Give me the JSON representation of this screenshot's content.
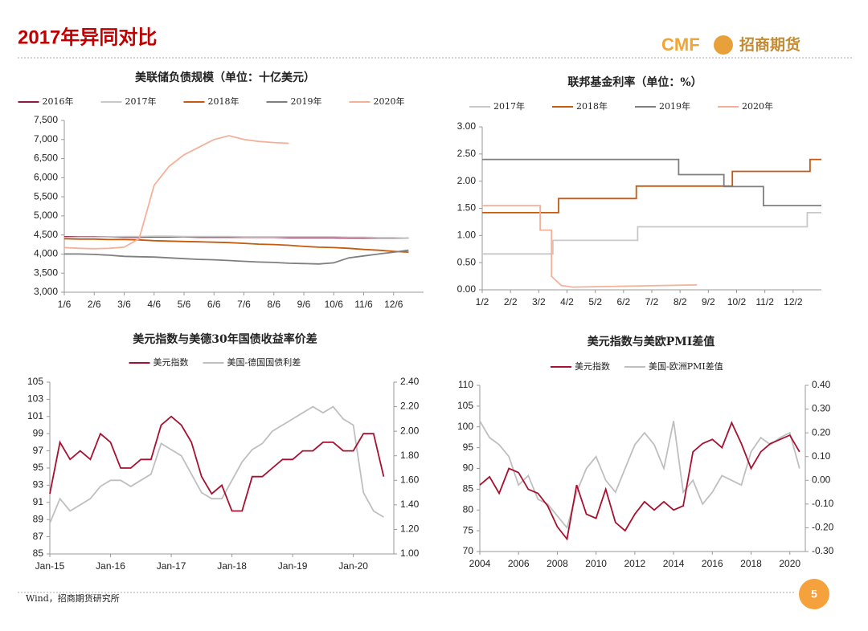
{
  "header": {
    "title": "2017年异同对比",
    "logo_en": "CMF",
    "logo_cn": "招商期货"
  },
  "footer": {
    "source": "Wind，招商期货研究所",
    "page": 5
  },
  "chart_data": [
    {
      "type": "line",
      "title": "美联储负债规模（单位：十亿美元）",
      "x": [
        1,
        1.5,
        2,
        2.5,
        3,
        3.5,
        4,
        4.5,
        5,
        5.5,
        6,
        6.5,
        7,
        7.5,
        8,
        8.5,
        9,
        9.5,
        10,
        10.5,
        11,
        11.5,
        12,
        12.5
      ],
      "xlim": [
        1,
        13
      ],
      "xticks": [
        {
          "value": 1,
          "label": "1/6"
        },
        {
          "value": 2,
          "label": "2/6"
        },
        {
          "value": 3,
          "label": "3/6"
        },
        {
          "value": 4,
          "label": "4/6"
        },
        {
          "value": 5,
          "label": "5/6"
        },
        {
          "value": 6,
          "label": "6/6"
        },
        {
          "value": 7,
          "label": "7/6"
        },
        {
          "value": 8,
          "label": "8/6"
        },
        {
          "value": 9,
          "label": "9/6"
        },
        {
          "value": 10,
          "label": "10/6"
        },
        {
          "value": 11,
          "label": "11/6"
        },
        {
          "value": 12,
          "label": "12/6"
        }
      ],
      "ylim": [
        3000,
        7500
      ],
      "yticks": [
        {
          "value": 3000,
          "label": "3,000"
        },
        {
          "value": 3500,
          "label": "3,500"
        },
        {
          "value": 4000,
          "label": "4,000"
        },
        {
          "value": 4500,
          "label": "4,500"
        },
        {
          "value": 5000,
          "label": "5,000"
        },
        {
          "value": 5500,
          "label": "5,500"
        },
        {
          "value": 6000,
          "label": "6,000"
        },
        {
          "value": 6500,
          "label": "6,500"
        },
        {
          "value": 7000,
          "label": "7,000"
        },
        {
          "value": 7500,
          "label": "7,500"
        }
      ],
      "series": [
        {
          "name": "2016年",
          "color": "#8b1c3f",
          "values": [
            4450,
            4450,
            4450,
            4450,
            4440,
            4440,
            4450,
            4450,
            4450,
            4440,
            4440,
            4440,
            4440,
            4440,
            4440,
            4430,
            4430,
            4430,
            4430,
            4420,
            4420,
            4420,
            4420,
            4420
          ]
        },
        {
          "name": "2017年",
          "color": "#c8c8c8",
          "values": [
            4430,
            4440,
            4440,
            4450,
            4460,
            4460,
            4470,
            4470,
            4460,
            4460,
            4460,
            4460,
            4450,
            4450,
            4450,
            4450,
            4450,
            4450,
            4450,
            4440,
            4440,
            4430,
            4430,
            4420
          ]
        },
        {
          "name": "2018年",
          "color": "#c55a11",
          "values": [
            4400,
            4390,
            4390,
            4380,
            4380,
            4370,
            4350,
            4340,
            4330,
            4320,
            4310,
            4300,
            4280,
            4260,
            4250,
            4230,
            4200,
            4180,
            4170,
            4150,
            4120,
            4100,
            4070,
            4050
          ]
        },
        {
          "name": "2019年",
          "color": "#7f7f7f",
          "values": [
            4000,
            4000,
            3990,
            3970,
            3940,
            3930,
            3920,
            3900,
            3880,
            3860,
            3850,
            3830,
            3810,
            3790,
            3780,
            3760,
            3750,
            3740,
            3770,
            3900,
            3950,
            4000,
            4050,
            4100
          ]
        },
        {
          "name": "2020年",
          "color": "#f4b19a",
          "values": [
            4170,
            4150,
            4140,
            4150,
            4180,
            4400,
            5800,
            6300,
            6600,
            6800,
            7000,
            7100,
            7000,
            6950,
            6920,
            6900,
            null,
            null,
            null,
            null,
            null,
            null,
            null,
            null
          ]
        }
      ]
    },
    {
      "type": "line",
      "title": "联邦基金利率（单位：%）",
      "xlim": [
        1,
        13
      ],
      "xticks": [
        {
          "value": 1,
          "label": "1/2"
        },
        {
          "value": 2,
          "label": "2/2"
        },
        {
          "value": 3,
          "label": "3/2"
        },
        {
          "value": 4,
          "label": "4/2"
        },
        {
          "value": 5,
          "label": "5/2"
        },
        {
          "value": 6,
          "label": "6/2"
        },
        {
          "value": 7,
          "label": "7/2"
        },
        {
          "value": 8,
          "label": "8/2"
        },
        {
          "value": 9,
          "label": "9/2"
        },
        {
          "value": 10,
          "label": "10/2"
        },
        {
          "value": 11,
          "label": "11/2"
        },
        {
          "value": 12,
          "label": "12/2"
        }
      ],
      "ylim": [
        0,
        3
      ],
      "yticks": [
        {
          "value": 0,
          "label": "0.00"
        },
        {
          "value": 0.5,
          "label": "0.50"
        },
        {
          "value": 1,
          "label": "1.00"
        },
        {
          "value": 1.5,
          "label": "1.50"
        },
        {
          "value": 2,
          "label": "2.00"
        },
        {
          "value": 2.5,
          "label": "2.50"
        },
        {
          "value": 3,
          "label": "3.00"
        }
      ],
      "series": [
        {
          "name": "2017年",
          "color": "#c8c8c8",
          "x": [
            1,
            3.5,
            3.5,
            6.5,
            6.5,
            12.5,
            12.5,
            13
          ],
          "values": [
            0.66,
            0.66,
            0.91,
            0.91,
            1.16,
            1.16,
            1.42,
            1.42
          ]
        },
        {
          "name": "2018年",
          "color": "#c55a11",
          "x": [
            1,
            3.7,
            3.7,
            6.45,
            6.45,
            9.85,
            9.85,
            12.6,
            12.6,
            13
          ],
          "values": [
            1.42,
            1.42,
            1.68,
            1.68,
            1.91,
            1.91,
            2.18,
            2.18,
            2.4,
            2.4
          ]
        },
        {
          "name": "2019年",
          "color": "#7f7f7f",
          "x": [
            1,
            7.95,
            7.95,
            9.55,
            9.55,
            10.95,
            10.95,
            13
          ],
          "values": [
            2.4,
            2.4,
            2.12,
            2.12,
            1.9,
            1.9,
            1.55,
            1.55
          ]
        },
        {
          "name": "2020年",
          "color": "#f4b19a",
          "x": [
            1,
            3.05,
            3.05,
            3.45,
            3.45,
            3.8,
            4.2,
            8.6
          ],
          "values": [
            1.55,
            1.55,
            1.1,
            1.1,
            0.25,
            0.08,
            0.05,
            0.09
          ]
        }
      ]
    },
    {
      "type": "line",
      "title": "美元指数与美德30年国债收益率价差",
      "x": [
        "2015-01",
        "2015-03",
        "2015-05",
        "2015-07",
        "2015-09",
        "2015-11",
        "2016-01",
        "2016-03",
        "2016-05",
        "2016-07",
        "2016-09",
        "2016-11",
        "2017-01",
        "2017-03",
        "2017-05",
        "2017-07",
        "2017-09",
        "2017-11",
        "2018-01",
        "2018-03",
        "2018-05",
        "2018-07",
        "2018-09",
        "2018-11",
        "2019-01",
        "2019-03",
        "2019-05",
        "2019-07",
        "2019-09",
        "2019-11",
        "2020-01",
        "2020-03",
        "2020-05",
        "2020-07"
      ],
      "xlim": [
        "2015-01",
        "2020-09"
      ],
      "xticks": [
        {
          "value": "2015-01",
          "label": "Jan-15"
        },
        {
          "value": "2016-01",
          "label": "Jan-16"
        },
        {
          "value": "2017-01",
          "label": "Jan-17"
        },
        {
          "value": "2018-01",
          "label": "Jan-18"
        },
        {
          "value": "2019-01",
          "label": "Jan-19"
        },
        {
          "value": "2020-01",
          "label": "Jan-20"
        }
      ],
      "ylim": [
        85,
        105
      ],
      "yticks": [
        85,
        87,
        89,
        91,
        93,
        95,
        97,
        99,
        101,
        103,
        105
      ],
      "y2lim": [
        1.0,
        2.4
      ],
      "y2ticks": [
        {
          "value": 1.0,
          "label": "1.00"
        },
        {
          "value": 1.2,
          "label": "1.20"
        },
        {
          "value": 1.4,
          "label": "1.40"
        },
        {
          "value": 1.6,
          "label": "1.60"
        },
        {
          "value": 1.8,
          "label": "1.80"
        },
        {
          "value": 2.0,
          "label": "2.00"
        },
        {
          "value": 2.2,
          "label": "2.20"
        },
        {
          "value": 2.4,
          "label": "2.40"
        }
      ],
      "series": [
        {
          "name": "美元指数",
          "color": "#a6112f",
          "values": [
            92,
            98,
            96,
            97,
            96,
            99,
            98,
            95,
            95,
            96,
            96,
            100,
            101,
            100,
            98,
            94,
            92,
            93,
            90,
            90,
            94,
            94,
            95,
            96,
            96,
            97,
            97,
            98,
            98,
            97,
            97,
            99,
            99,
            94
          ]
        },
        {
          "name": "美国-德国国债利差",
          "color": "#bfbfbf",
          "axis": "y2",
          "values": [
            1.25,
            1.45,
            1.35,
            1.4,
            1.45,
            1.55,
            1.6,
            1.6,
            1.55,
            1.6,
            1.65,
            1.9,
            1.85,
            1.8,
            1.65,
            1.5,
            1.45,
            1.45,
            1.6,
            1.75,
            1.85,
            1.9,
            2.0,
            2.05,
            2.1,
            2.15,
            2.2,
            2.15,
            2.2,
            2.1,
            2.05,
            1.5,
            1.35,
            1.3
          ]
        }
      ]
    },
    {
      "type": "line",
      "title": "美元指数与美欧PMI差值",
      "x": [
        2004,
        2004.5,
        2005,
        2005.5,
        2006,
        2006.5,
        2007,
        2007.5,
        2008,
        2008.5,
        2009,
        2009.5,
        2010,
        2010.5,
        2011,
        2011.5,
        2012,
        2012.5,
        2013,
        2013.5,
        2014,
        2014.5,
        2015,
        2015.5,
        2016,
        2016.5,
        2017,
        2017.5,
        2018,
        2018.5,
        2019,
        2019.5,
        2020,
        2020.5
      ],
      "xlim": [
        2004,
        2020.8
      ],
      "xticks": [
        2004,
        2006,
        2008,
        2010,
        2012,
        2014,
        2016,
        2018,
        2020
      ],
      "ylim": [
        70,
        110
      ],
      "yticks": [
        70,
        75,
        80,
        85,
        90,
        95,
        100,
        105,
        110
      ],
      "y2lim": [
        -0.3,
        0.4
      ],
      "y2ticks": [
        {
          "value": -0.3,
          "label": "-0.30"
        },
        {
          "value": -0.2,
          "label": "-0.20"
        },
        {
          "value": -0.1,
          "label": "-0.10"
        },
        {
          "value": 0,
          "label": "0.00"
        },
        {
          "value": 0.1,
          "label": "0.10"
        },
        {
          "value": 0.2,
          "label": "0.20"
        },
        {
          "value": 0.3,
          "label": "0.30"
        },
        {
          "value": 0.4,
          "label": "0.40"
        }
      ],
      "series": [
        {
          "name": "美元指数",
          "color": "#a6112f",
          "values": [
            86,
            88,
            84,
            90,
            89,
            85,
            84,
            81,
            76,
            73,
            86,
            79,
            78,
            85,
            77,
            75,
            79,
            82,
            80,
            82,
            80,
            81,
            94,
            96,
            97,
            95,
            101,
            96,
            90,
            94,
            96,
            97,
            98,
            94
          ]
        },
        {
          "name": "美国-欧洲PMI差值",
          "color": "#bfbfbf",
          "axis": "y2",
          "values": [
            0.25,
            0.18,
            0.15,
            0.1,
            -0.02,
            0.02,
            -0.08,
            -0.1,
            -0.15,
            -0.2,
            -0.05,
            0.05,
            0.1,
            0,
            -0.05,
            0.05,
            0.15,
            0.2,
            0.15,
            0.05,
            0.25,
            -0.05,
            0,
            -0.1,
            -0.05,
            0.02,
            0,
            -0.02,
            0.12,
            0.18,
            0.15,
            0.18,
            0.2,
            0.05
          ]
        }
      ]
    }
  ]
}
